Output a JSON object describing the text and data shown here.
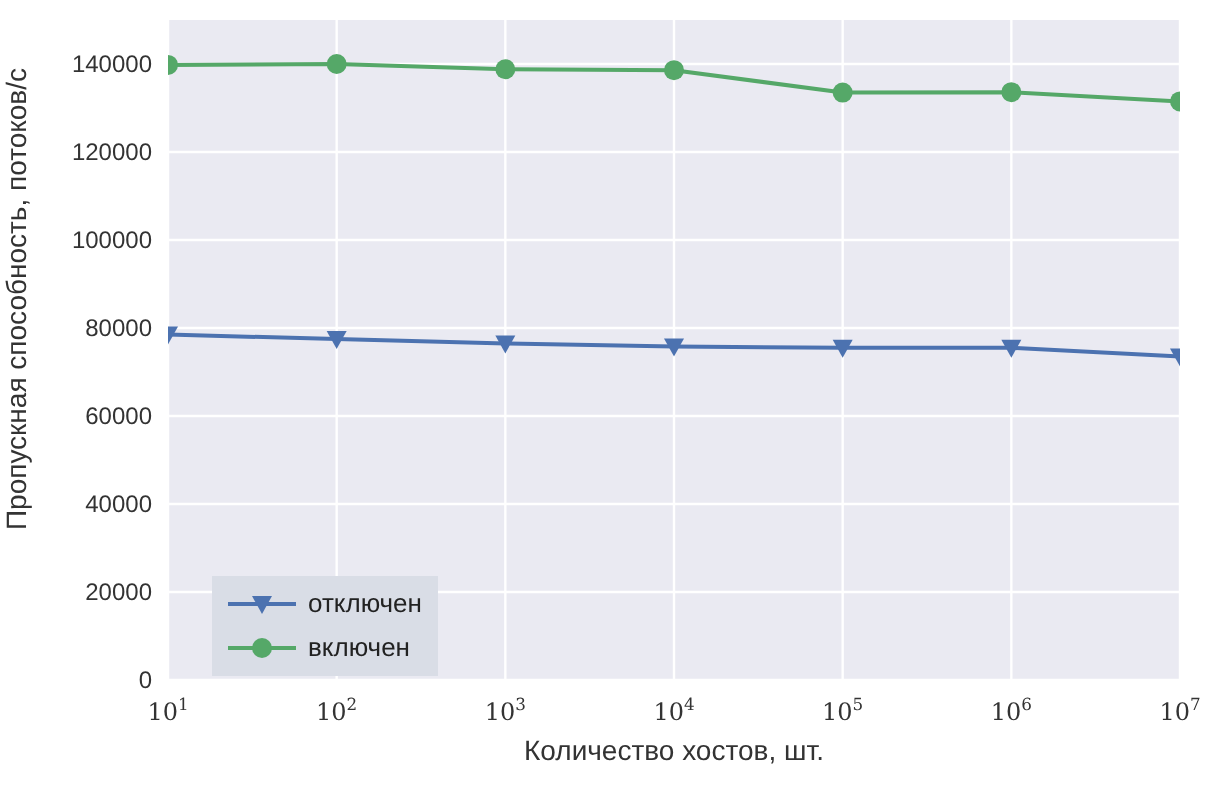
{
  "chart_data": {
    "type": "line",
    "xlabel": "Количество хостов, шт.",
    "ylabel": "Пропускная способность, потоков/с",
    "x": [
      10,
      100,
      1000,
      10000,
      100000,
      1000000,
      10000000
    ],
    "series": [
      {
        "name": "отключен",
        "color": "#4c72b0",
        "marker": "triangle",
        "values": [
          78500,
          77500,
          76500,
          75800,
          75500,
          75500,
          73500
        ]
      },
      {
        "name": "включен",
        "color": "#55a868",
        "marker": "circle",
        "values": [
          139800,
          140000,
          138800,
          138600,
          133500,
          133600,
          131500
        ]
      }
    ],
    "log": "x",
    "xlim": [
      10,
      10000000
    ],
    "xticks": [
      {
        "value": 10,
        "label": "10$^{1}$"
      },
      {
        "value": 100,
        "label": "10$^{2}$"
      },
      {
        "value": 1000,
        "label": "10$^{3}$"
      },
      {
        "value": 10000,
        "label": "10$^{4}$"
      },
      {
        "value": 100000,
        "label": "10$^{5}$"
      },
      {
        "value": 1000000,
        "label": "10$^{6}$"
      },
      {
        "value": 10000000,
        "label": "10$^{7}$"
      }
    ],
    "ylim": [
      0,
      150000
    ],
    "yticks": [
      0,
      20000,
      40000,
      60000,
      80000,
      100000,
      120000,
      140000
    ],
    "grid": true,
    "legend": "bottom left",
    "line_style": "solid"
  }
}
